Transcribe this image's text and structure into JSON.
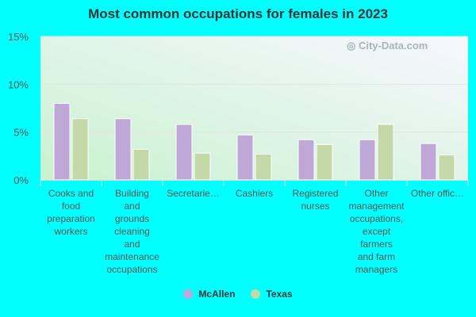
{
  "chart_data": {
    "type": "bar",
    "title": "Most common occupations for females in 2023",
    "categories": [
      "Cooks and\nfood\npreparation\nworkers",
      "Building\nand\ngrounds\ncleaning\nand\nmaintenance\noccupations",
      "Secretarie…",
      "Cashiers",
      "Registered\nnurses",
      "Other\nmanagement\noccupations,\nexcept\nfarmers\nand farm\nmanagers",
      "Other offic…"
    ],
    "series": [
      {
        "name": "McAllen",
        "color": "#bfa8d8",
        "values": [
          8.0,
          6.4,
          5.8,
          4.7,
          4.2,
          4.2,
          3.8
        ]
      },
      {
        "name": "Texas",
        "color": "#c4d8a8",
        "values": [
          6.4,
          3.2,
          2.8,
          2.7,
          3.7,
          5.8,
          2.6
        ]
      }
    ],
    "yticks": [
      "0%",
      "5%",
      "10%",
      "15%"
    ],
    "ylim": [
      0,
      15
    ],
    "grid": true,
    "legend": "bottom",
    "watermark": "City-Data.com"
  }
}
